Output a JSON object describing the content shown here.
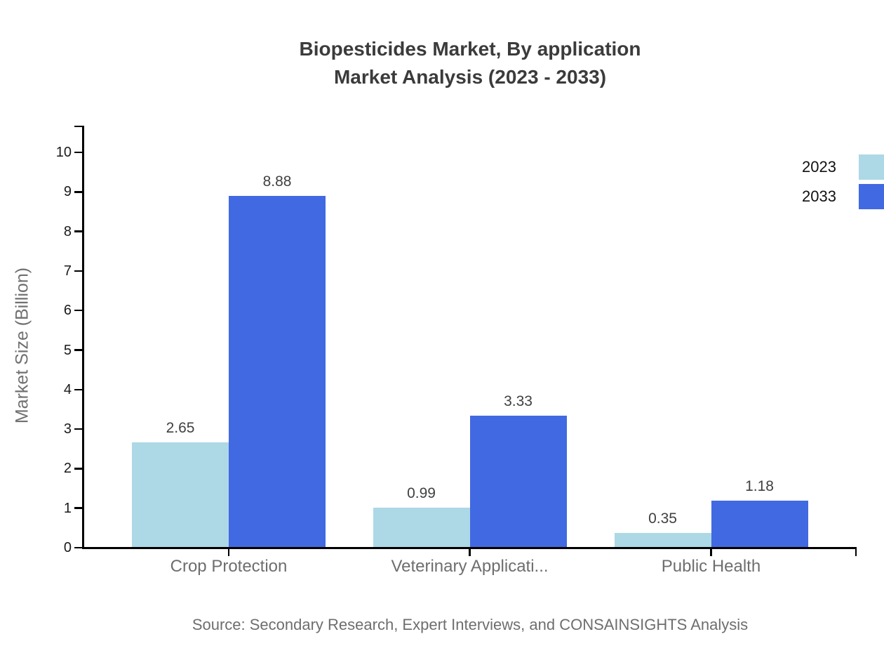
{
  "chart_data": {
    "type": "bar",
    "title_lines": [
      "Biopesticides Market, By application",
      "Market Analysis (2023 - 2033)"
    ],
    "categories": [
      "Crop Protection",
      "Veterinary Applicati...",
      "Public Health"
    ],
    "series": [
      {
        "name": "2023",
        "color": "#ADD8E6",
        "values": [
          2.65,
          0.99,
          0.35
        ]
      },
      {
        "name": "2033",
        "color": "#4169E1",
        "values": [
          8.88,
          3.33,
          1.18
        ]
      }
    ],
    "xlabel": "",
    "ylabel": "Market Size (Billion)",
    "yticks": [
      0,
      1,
      2,
      3,
      4,
      5,
      6,
      7,
      8,
      9,
      10
    ],
    "ylim": [
      0,
      10.65
    ],
    "grid": false,
    "legend_position": "top-right",
    "value_labels": true,
    "source": "Source: Secondary Research, Expert Interviews, and CONSAINSIGHTS Analysis",
    "colors": {
      "title": "#3b3b3b",
      "axis_line": "#000000",
      "y_tick_labels": "#1a1a1a",
      "category_labels": "#6e6e6e",
      "value_labels": "#404040",
      "axis_title": "#707070",
      "legend_text": "#111111",
      "source": "#6e6e6e",
      "background": "#ffffff"
    }
  }
}
